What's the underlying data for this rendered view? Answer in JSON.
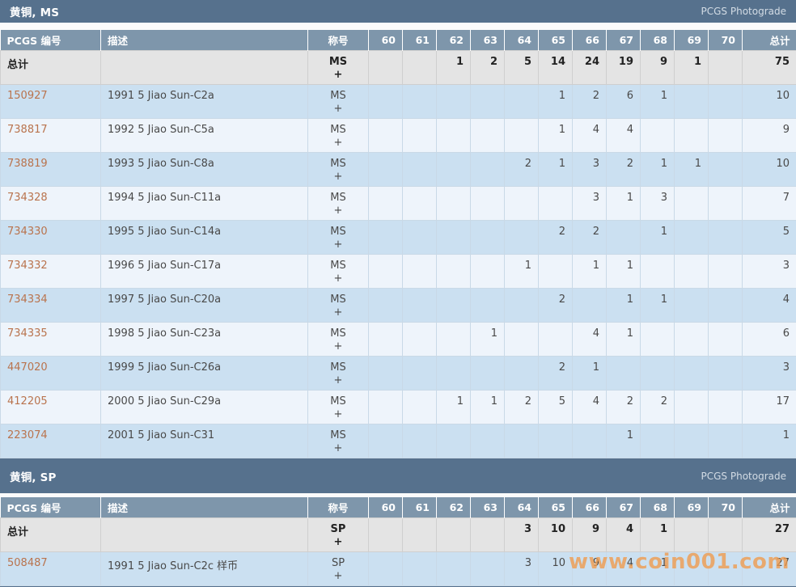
{
  "watermark": "www.coin001.com",
  "columns": {
    "pcgs_no": "PCGS 编号",
    "description": "描述",
    "designation": "称号",
    "grades": [
      "60",
      "61",
      "62",
      "63",
      "64",
      "65",
      "66",
      "67",
      "68",
      "69",
      "70"
    ],
    "total": "总计"
  },
  "colors": {
    "section_bar": "#56718d",
    "column_header": "#7e96ab",
    "row_blue": "#cbe0f1",
    "row_pale": "#eef4fb",
    "total_row_bg": "#e4e4e4",
    "link": "#b9734d",
    "watermark": "#f09a4a"
  },
  "tables": [
    {
      "title": "黄铜, MS",
      "photograde_label": "PCGS Photograde",
      "total_row": {
        "label": "总计",
        "designation": "MS",
        "plus": "+",
        "grades": [
          "",
          "",
          "1",
          "2",
          "5",
          "14",
          "24",
          "19",
          "9",
          "1",
          ""
        ],
        "total": "75"
      },
      "rows": [
        {
          "pcgs": "150927",
          "desc": "1991 5 Jiao Sun-C2a",
          "designation": "MS",
          "plus": "+",
          "grades": [
            "",
            "",
            "",
            "",
            "",
            "1",
            "2",
            "6",
            "1",
            "",
            ""
          ],
          "total": "10"
        },
        {
          "pcgs": "738817",
          "desc": "1992 5 Jiao Sun-C5a",
          "designation": "MS",
          "plus": "+",
          "grades": [
            "",
            "",
            "",
            "",
            "",
            "1",
            "4",
            "4",
            "",
            "",
            ""
          ],
          "total": "9"
        },
        {
          "pcgs": "738819",
          "desc": "1993 5 Jiao Sun-C8a",
          "designation": "MS",
          "plus": "+",
          "grades": [
            "",
            "",
            "",
            "",
            "2",
            "1",
            "3",
            "2",
            "1",
            "1",
            ""
          ],
          "total": "10"
        },
        {
          "pcgs": "734328",
          "desc": "1994 5 Jiao Sun-C11a",
          "designation": "MS",
          "plus": "+",
          "grades": [
            "",
            "",
            "",
            "",
            "",
            "",
            "3",
            "1",
            "3",
            "",
            ""
          ],
          "total": "7"
        },
        {
          "pcgs": "734330",
          "desc": "1995 5 Jiao Sun-C14a",
          "designation": "MS",
          "plus": "+",
          "grades": [
            "",
            "",
            "",
            "",
            "",
            "2",
            "2",
            "",
            "1",
            "",
            ""
          ],
          "total": "5"
        },
        {
          "pcgs": "734332",
          "desc": "1996 5 Jiao Sun-C17a",
          "designation": "MS",
          "plus": "+",
          "grades": [
            "",
            "",
            "",
            "",
            "1",
            "",
            "1",
            "1",
            "",
            "",
            ""
          ],
          "total": "3"
        },
        {
          "pcgs": "734334",
          "desc": "1997 5 Jiao Sun-C20a",
          "designation": "MS",
          "plus": "+",
          "grades": [
            "",
            "",
            "",
            "",
            "",
            "2",
            "",
            "1",
            "1",
            "",
            ""
          ],
          "total": "4"
        },
        {
          "pcgs": "734335",
          "desc": "1998 5 Jiao Sun-C23a",
          "designation": "MS",
          "plus": "+",
          "grades": [
            "",
            "",
            "",
            "1",
            "",
            "",
            "4",
            "1",
            "",
            "",
            ""
          ],
          "total": "6"
        },
        {
          "pcgs": "447020",
          "desc": "1999 5 Jiao Sun-C26a",
          "designation": "MS",
          "plus": "+",
          "grades": [
            "",
            "",
            "",
            "",
            "",
            "2",
            "1",
            "",
            "",
            "",
            ""
          ],
          "total": "3"
        },
        {
          "pcgs": "412205",
          "desc": "2000 5 Jiao Sun-C29a",
          "designation": "MS",
          "plus": "+",
          "grades": [
            "",
            "",
            "1",
            "1",
            "2",
            "5",
            "4",
            "2",
            "2",
            "",
            ""
          ],
          "total": "17"
        },
        {
          "pcgs": "223074",
          "desc": "2001 5 Jiao Sun-C31",
          "designation": "MS",
          "plus": "+",
          "grades": [
            "",
            "",
            "",
            "",
            "",
            "",
            "",
            "1",
            "",
            "",
            ""
          ],
          "total": "1"
        }
      ]
    },
    {
      "title": "黄铜, SP",
      "photograde_label": "PCGS Photograde",
      "total_row": {
        "label": "总计",
        "designation": "SP",
        "plus": "+",
        "grades": [
          "",
          "",
          "",
          "",
          "3",
          "10",
          "9",
          "4",
          "1",
          "",
          ""
        ],
        "total": "27"
      },
      "rows": [
        {
          "pcgs": "508487",
          "desc": "1991 5 Jiao Sun-C2c 样币",
          "designation": "SP",
          "plus": "+",
          "grades": [
            "",
            "",
            "",
            "",
            "3",
            "10",
            "9",
            "4",
            "1",
            "",
            ""
          ],
          "total": "27"
        }
      ]
    }
  ]
}
